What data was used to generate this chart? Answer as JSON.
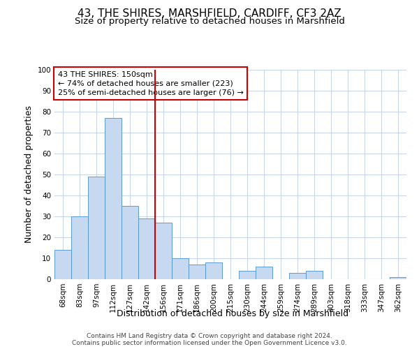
{
  "title": "43, THE SHIRES, MARSHFIELD, CARDIFF, CF3 2AZ",
  "subtitle": "Size of property relative to detached houses in Marshfield",
  "xlabel": "Distribution of detached houses by size in Marshfield",
  "ylabel": "Number of detached properties",
  "categories": [
    "68sqm",
    "83sqm",
    "97sqm",
    "112sqm",
    "127sqm",
    "142sqm",
    "156sqm",
    "171sqm",
    "186sqm",
    "200sqm",
    "215sqm",
    "230sqm",
    "244sqm",
    "259sqm",
    "274sqm",
    "289sqm",
    "303sqm",
    "318sqm",
    "333sqm",
    "347sqm",
    "362sqm"
  ],
  "values": [
    14,
    30,
    49,
    77,
    35,
    29,
    27,
    10,
    7,
    8,
    0,
    4,
    6,
    0,
    3,
    4,
    0,
    0,
    0,
    0,
    1
  ],
  "bar_color": "#c6d9f0",
  "bar_edgecolor": "#5a9bd5",
  "ylim": [
    0,
    100
  ],
  "yticks": [
    0,
    10,
    20,
    30,
    40,
    50,
    60,
    70,
    80,
    90,
    100
  ],
  "vline_x": 5.5,
  "vline_color": "#cc0000",
  "annotation_line1": "43 THE SHIRES: 150sqm",
  "annotation_line2": "← 74% of detached houses are smaller (223)",
  "annotation_line3": "25% of semi-detached houses are larger (76) →",
  "annotation_box_color": "#cc0000",
  "annotation_box_fill": "#ffffff",
  "footer_line1": "Contains HM Land Registry data © Crown copyright and database right 2024.",
  "footer_line2": "Contains public sector information licensed under the Open Government Licence v3.0.",
  "background_color": "#ffffff",
  "grid_color": "#c8d8e8",
  "title_fontsize": 11,
  "subtitle_fontsize": 9.5,
  "axis_label_fontsize": 9,
  "tick_fontsize": 7.5,
  "footer_fontsize": 6.5,
  "annotation_fontsize": 8
}
